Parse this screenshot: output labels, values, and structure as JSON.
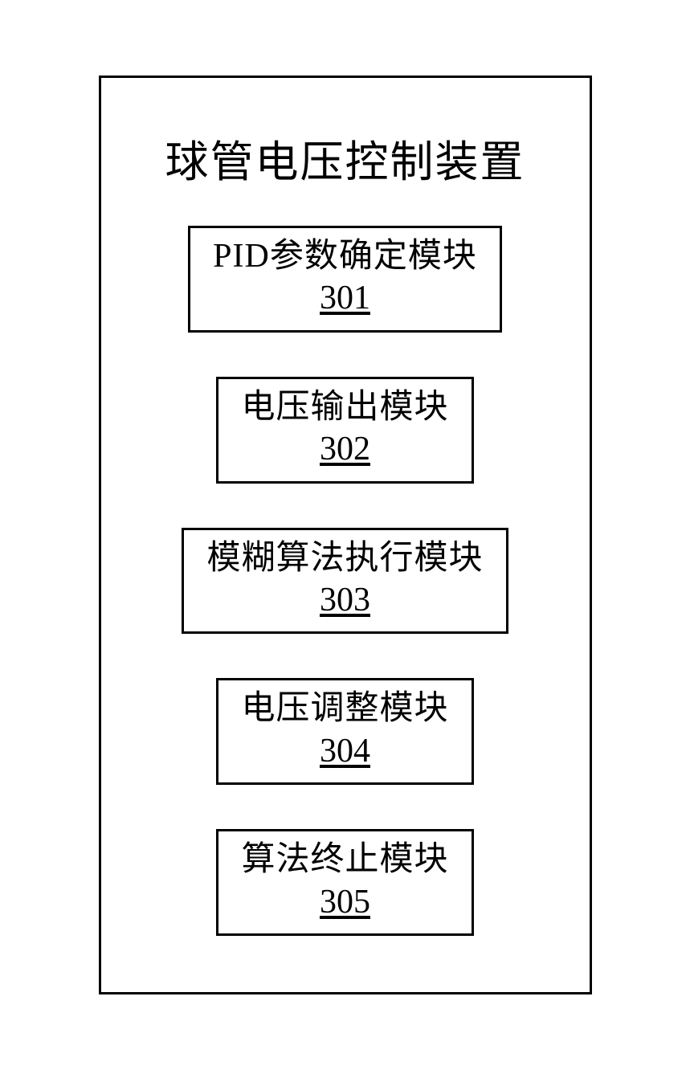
{
  "diagram": {
    "type": "block-diagram",
    "title": "球管电压控制装置",
    "outer_border_color": "#000000",
    "outer_border_width": 3,
    "background_color": "#ffffff",
    "title_fontsize": 54,
    "module_label_fontsize": 42,
    "module_number_fontsize": 42,
    "module_border_color": "#000000",
    "module_border_width": 3,
    "text_color": "#000000",
    "modules": [
      {
        "label": "PID参数确定模块",
        "number": "301"
      },
      {
        "label": "电压输出模块",
        "number": "302"
      },
      {
        "label": "模糊算法执行模块",
        "number": "303"
      },
      {
        "label": "电压调整模块",
        "number": "304"
      },
      {
        "label": "算法终止模块",
        "number": "305"
      }
    ]
  }
}
